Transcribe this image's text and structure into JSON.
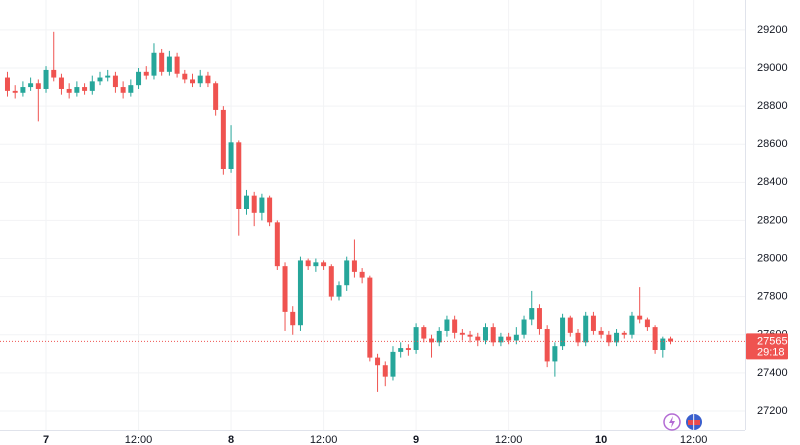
{
  "chart_data": {
    "type": "candlestick",
    "up_color": "#26a69a",
    "down_color": "#ef5350",
    "grid": true,
    "x": [
      -5,
      -4,
      -3,
      -2,
      -1,
      0,
      1,
      2,
      3,
      4,
      5,
      6,
      7,
      8,
      9,
      10,
      11,
      12,
      13,
      14,
      15,
      16,
      17,
      18,
      19,
      20,
      21,
      22,
      23,
      24,
      25,
      26,
      27,
      28,
      29,
      30,
      31,
      32,
      33,
      34,
      35,
      36,
      37,
      38,
      39,
      40,
      41,
      42,
      43,
      44,
      45,
      46,
      47,
      48,
      49,
      50,
      51,
      52,
      53,
      54,
      55,
      56,
      57,
      58,
      59,
      60,
      61,
      62,
      63,
      64,
      65,
      66,
      67,
      68,
      69,
      70,
      71,
      72,
      73,
      74,
      75,
      76,
      77,
      78,
      79,
      80,
      81
    ],
    "open": [
      28950,
      28880,
      28870,
      28900,
      28920,
      28890,
      28990,
      28950,
      28890,
      28870,
      28900,
      28880,
      28930,
      28950,
      28960,
      28900,
      28870,
      28910,
      28980,
      28960,
      29080,
      28980,
      29060,
      28970,
      28940,
      28920,
      28960,
      28920,
      28780,
      28470,
      28610,
      28260,
      28330,
      28240,
      28320,
      28190,
      27960,
      27720,
      27650,
      27990,
      27960,
      27980,
      27960,
      27800,
      27860,
      27990,
      27930,
      27900,
      27480,
      27440,
      27380,
      27510,
      27530,
      27520,
      27640,
      27580,
      27560,
      27620,
      27680,
      27610,
      27600,
      27590,
      27570,
      27640,
      27560,
      27590,
      27570,
      27600,
      27680,
      27740,
      27630,
      27460,
      27540,
      27690,
      27610,
      27560,
      27700,
      27620,
      27600,
      27560,
      27610,
      27600,
      27700,
      27680,
      27640,
      27520,
      27580
    ],
    "high": [
      28980,
      28910,
      28930,
      28950,
      28940,
      29010,
      29190,
      28970,
      28920,
      28930,
      28920,
      28960,
      28980,
      28990,
      28980,
      28930,
      28940,
      29000,
      29010,
      29130,
      29100,
      29090,
      29080,
      28990,
      28970,
      28990,
      28980,
      28930,
      28800,
      28700,
      28620,
      28360,
      28350,
      28340,
      28330,
      28200,
      27980,
      27750,
      28010,
      28000,
      28000,
      27990,
      27970,
      27880,
      28010,
      28100,
      27950,
      27910,
      27500,
      27460,
      27540,
      27560,
      27550,
      27660,
      27650,
      27600,
      27640,
      27700,
      27700,
      27630,
      27620,
      27610,
      27660,
      27660,
      27610,
      27610,
      27640,
      27700,
      27830,
      27760,
      27650,
      27560,
      27710,
      27700,
      27630,
      27720,
      27720,
      27640,
      27620,
      27630,
      27620,
      27720,
      27850,
      27690,
      27650,
      27590,
      27590
    ],
    "low": [
      28850,
      28840,
      28850,
      28880,
      28720,
      28870,
      28930,
      28860,
      28840,
      28850,
      28860,
      28860,
      28910,
      28930,
      28870,
      28840,
      28850,
      28890,
      28940,
      28940,
      28960,
      28960,
      28950,
      28920,
      28900,
      28900,
      28900,
      28750,
      28440,
      28450,
      28120,
      28230,
      28170,
      28200,
      28170,
      27940,
      27620,
      27600,
      27620,
      27940,
      27930,
      27940,
      27780,
      27780,
      27830,
      27900,
      27870,
      27460,
      27300,
      27330,
      27360,
      27480,
      27490,
      27500,
      27560,
      27480,
      27540,
      27590,
      27580,
      27570,
      27560,
      27540,
      27550,
      27540,
      27540,
      27550,
      27550,
      27580,
      27650,
      27600,
      27430,
      27380,
      27520,
      27590,
      27540,
      27540,
      27600,
      27580,
      27540,
      27540,
      27580,
      27580,
      27660,
      27620,
      27500,
      27480,
      27550
    ],
    "close": [
      28880,
      28870,
      28900,
      28920,
      28890,
      28990,
      28950,
      28890,
      28870,
      28900,
      28880,
      28930,
      28950,
      28960,
      28900,
      28870,
      28910,
      28980,
      28960,
      29080,
      28980,
      29060,
      28970,
      28940,
      28920,
      28960,
      28920,
      28780,
      28470,
      28610,
      28260,
      28330,
      28240,
      28320,
      28190,
      27960,
      27720,
      27650,
      27990,
      27960,
      27980,
      27960,
      27800,
      27860,
      27990,
      27930,
      27900,
      27480,
      27440,
      27380,
      27510,
      27530,
      27520,
      27640,
      27580,
      27560,
      27620,
      27680,
      27610,
      27600,
      27590,
      27570,
      27640,
      27560,
      27590,
      27570,
      27600,
      27680,
      27740,
      27630,
      27460,
      27540,
      27690,
      27610,
      27560,
      27700,
      27620,
      27600,
      27560,
      27610,
      27600,
      27700,
      27680,
      27640,
      27520,
      27580,
      27565
    ],
    "xlim": [
      -5.97,
      90.66
    ],
    "xticks": [
      {
        "value": 0,
        "label": "7"
      },
      {
        "value": 12,
        "label": "12:00"
      },
      {
        "value": 24,
        "label": "8"
      },
      {
        "value": 36,
        "label": "12:00"
      },
      {
        "value": 48,
        "label": "9"
      },
      {
        "value": 60,
        "label": "12:00"
      },
      {
        "value": 72,
        "label": "10"
      },
      {
        "value": 84,
        "label": "12:00"
      }
    ],
    "ylim": [
      27100,
      29357
    ],
    "yticks": [
      27200,
      27400,
      27600,
      27800,
      28000,
      28200,
      28400,
      28600,
      28800,
      29000,
      29200
    ],
    "last_price": 27565,
    "countdown": "29:18"
  }
}
